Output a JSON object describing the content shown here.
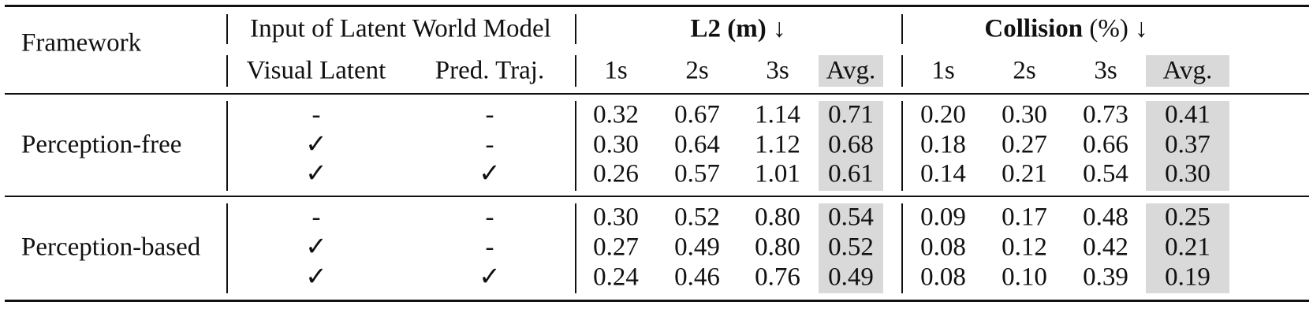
{
  "header": {
    "framework": "Framework",
    "input_group": "Input of Latent World Model",
    "l2_group": "L2 (m)",
    "collision_group": "Collision",
    "collision_unit": "(%)",
    "down_arrow": "↓",
    "visual_latent": "Visual Latent",
    "pred_traj": "Pred. Traj.",
    "horizons": [
      "1s",
      "2s",
      "3s",
      "Avg."
    ]
  },
  "groups": [
    {
      "framework": "Perception-free",
      "rows": [
        {
          "visual_latent": "-",
          "pred_traj": "-",
          "l2": [
            "0.32",
            "0.67",
            "1.14",
            "0.71"
          ],
          "collision": [
            "0.20",
            "0.30",
            "0.73",
            "0.41"
          ]
        },
        {
          "visual_latent": "✓",
          "pred_traj": "-",
          "l2": [
            "0.30",
            "0.64",
            "1.12",
            "0.68"
          ],
          "collision": [
            "0.18",
            "0.27",
            "0.66",
            "0.37"
          ]
        },
        {
          "visual_latent": "✓",
          "pred_traj": "✓",
          "l2": [
            "0.26",
            "0.57",
            "1.01",
            "0.61"
          ],
          "collision": [
            "0.14",
            "0.21",
            "0.54",
            "0.30"
          ]
        }
      ]
    },
    {
      "framework": "Perception-based",
      "rows": [
        {
          "visual_latent": "-",
          "pred_traj": "-",
          "l2": [
            "0.30",
            "0.52",
            "0.80",
            "0.54"
          ],
          "collision": [
            "0.09",
            "0.17",
            "0.48",
            "0.25"
          ]
        },
        {
          "visual_latent": "✓",
          "pred_traj": "-",
          "l2": [
            "0.27",
            "0.49",
            "0.80",
            "0.52"
          ],
          "collision": [
            "0.08",
            "0.12",
            "0.42",
            "0.21"
          ]
        },
        {
          "visual_latent": "✓",
          "pred_traj": "✓",
          "l2": [
            "0.24",
            "0.46",
            "0.76",
            "0.49"
          ],
          "collision": [
            "0.08",
            "0.10",
            "0.39",
            "0.19"
          ]
        }
      ]
    }
  ],
  "colors": {
    "avg_highlight": "#d9d9d9",
    "rule": "#111111"
  }
}
